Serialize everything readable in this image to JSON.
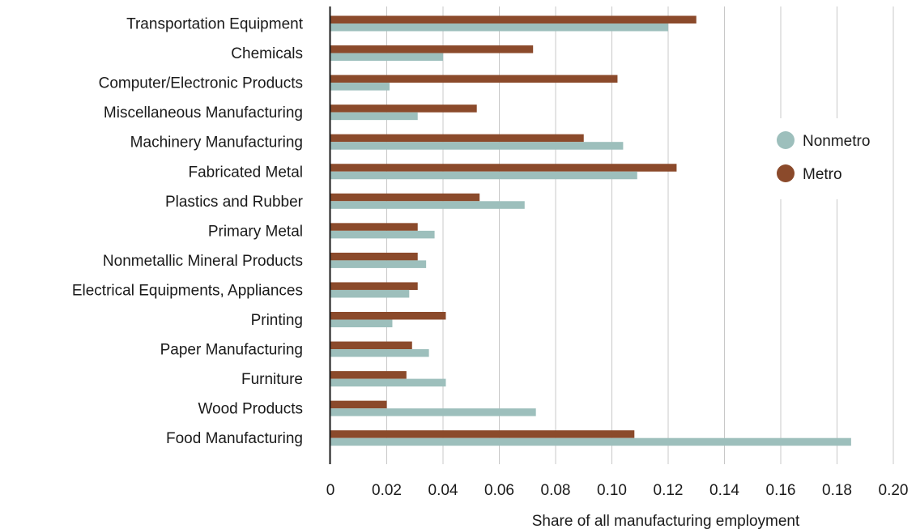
{
  "chart_data": {
    "type": "bar",
    "orientation": "horizontal",
    "categories": [
      "Transportation Equipment",
      "Chemicals",
      "Computer/Electronic Products",
      "Miscellaneous Manufacturing",
      "Machinery Manufacturing",
      "Fabricated Metal",
      "Plastics and Rubber",
      "Primary Metal",
      "Nonmetallic Mineral Products",
      "Electrical Equipments, Appliances",
      "Printing",
      "Paper Manufacturing",
      "Furniture",
      "Wood Products",
      "Food Manufacturing"
    ],
    "series": [
      {
        "name": "Metro",
        "color": "#8b4a2b",
        "values": [
          0.13,
          0.072,
          0.102,
          0.052,
          0.09,
          0.123,
          0.053,
          0.031,
          0.031,
          0.031,
          0.041,
          0.029,
          0.027,
          0.02,
          0.108
        ]
      },
      {
        "name": "Nonmetro",
        "color": "#9dbfbc",
        "values": [
          0.12,
          0.04,
          0.021,
          0.031,
          0.104,
          0.109,
          0.069,
          0.037,
          0.034,
          0.028,
          0.022,
          0.035,
          0.041,
          0.073,
          0.185
        ]
      }
    ],
    "legend_order": [
      "Nonmetro",
      "Metro"
    ],
    "xlabel": "Share of all manufacturing employment",
    "ylabel": "",
    "title": "",
    "xlim": [
      0,
      0.2
    ],
    "xticks": [
      "0",
      "0.02",
      "0.04",
      "0.06",
      "0.08",
      "0.10",
      "0.12",
      "0.14",
      "0.16",
      "0.18",
      "0.20"
    ],
    "grid": "vertical",
    "legend_position": "right"
  }
}
